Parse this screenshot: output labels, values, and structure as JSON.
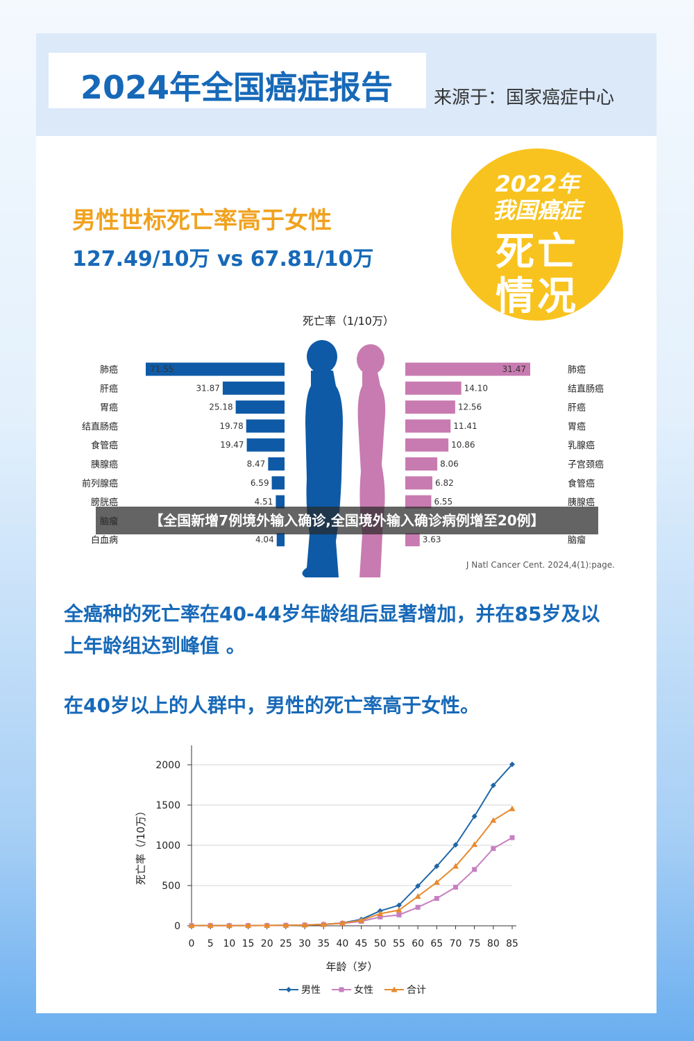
{
  "header": {
    "title": "2024年全国癌症报告",
    "source": "来源于：国家癌症中心"
  },
  "badge": {
    "line1": "2022年",
    "line2": "我国癌症",
    "line3": "死亡",
    "line4": "情况"
  },
  "headline": {
    "text": "男性世标死亡率高于女性",
    "rates": "127.49/10万 vs 67.81/10万"
  },
  "banner": {
    "text": "【全国新增7例境外输入确诊,全国境外输入确诊病例增至20例】"
  },
  "paragraphs": {
    "age_peak": "全癌种的死亡率在40-44岁年龄组后显著增加，并在85岁及以上年龄组达到峰值 。",
    "over_40": "在40岁以上的人群中，男性的死亡率高于女性。"
  },
  "colors": {
    "male": "#0e5aa7",
    "female": "#c87bb0",
    "total": "#e68a2e",
    "line_male": "#1f66a8",
    "line_female": "#c77fc0",
    "title_blue": "#1769b8",
    "badge_yellow": "#f8c31e",
    "headline_orange": "#f0a21f"
  },
  "chart_data": [
    {
      "type": "bar",
      "title": "死亡率（1/10万）",
      "citation": "J Natl Cancer Cent. 2024,4(1):page.",
      "series": [
        {
          "name": "male",
          "categories": [
            "肺癌",
            "肝癌",
            "胃癌",
            "结直肠癌",
            "食管癌",
            "胰腺癌",
            "前列腺癌",
            "膀胱癌",
            "脑瘤",
            "白血病"
          ],
          "values": [
            71.55,
            31.87,
            25.18,
            19.78,
            19.47,
            8.47,
            6.59,
            4.51,
            null,
            4.04
          ],
          "labels": [
            "71.55",
            "31.87",
            "25.18",
            "19.78",
            "19.47",
            "8.47",
            "6.59",
            "4.51",
            "",
            "4.04"
          ]
        },
        {
          "name": "female",
          "categories": [
            "肺癌",
            "结直肠癌",
            "肝癌",
            "胃癌",
            "乳腺癌",
            "子宫颈癌",
            "食管癌",
            "胰腺癌",
            "",
            "脑瘤"
          ],
          "values": [
            31.47,
            14.1,
            12.56,
            11.41,
            10.86,
            8.06,
            6.82,
            6.55,
            null,
            3.63
          ],
          "labels": [
            "31.47",
            "14.10",
            "12.56",
            "11.41",
            "10.86",
            "8.06",
            "6.82",
            "6.55",
            "",
            "3.63"
          ]
        }
      ]
    },
    {
      "type": "line",
      "xlabel": "年龄（岁）",
      "ylabel": "死亡率（/10万）",
      "x": [
        0,
        5,
        10,
        15,
        20,
        25,
        30,
        35,
        40,
        45,
        50,
        55,
        60,
        65,
        70,
        75,
        80,
        85
      ],
      "xticks": [
        "0",
        "5",
        "10",
        "15",
        "20",
        "25",
        "30",
        "35",
        "40",
        "45",
        "50",
        "55",
        "60",
        "65",
        "70",
        "75",
        "80",
        "85"
      ],
      "yticks": [
        "0",
        "500",
        "1000",
        "1500",
        "2000"
      ],
      "ylim": [
        0,
        2000
      ],
      "series": [
        {
          "name": "男性",
          "values": [
            3,
            3,
            3,
            3,
            4,
            6,
            10,
            18,
            35,
            80,
            185,
            255,
            495,
            740,
            1005,
            1360,
            1745,
            2005
          ]
        },
        {
          "name": "女性",
          "values": [
            3,
            3,
            2,
            3,
            4,
            6,
            10,
            16,
            30,
            55,
            110,
            135,
            230,
            340,
            480,
            700,
            960,
            1095
          ]
        },
        {
          "name": "合计",
          "values": [
            3,
            3,
            3,
            3,
            4,
            6,
            10,
            17,
            33,
            68,
            150,
            195,
            365,
            540,
            740,
            1010,
            1310,
            1455
          ]
        }
      ],
      "legend": "bottom",
      "grid": true
    }
  ]
}
